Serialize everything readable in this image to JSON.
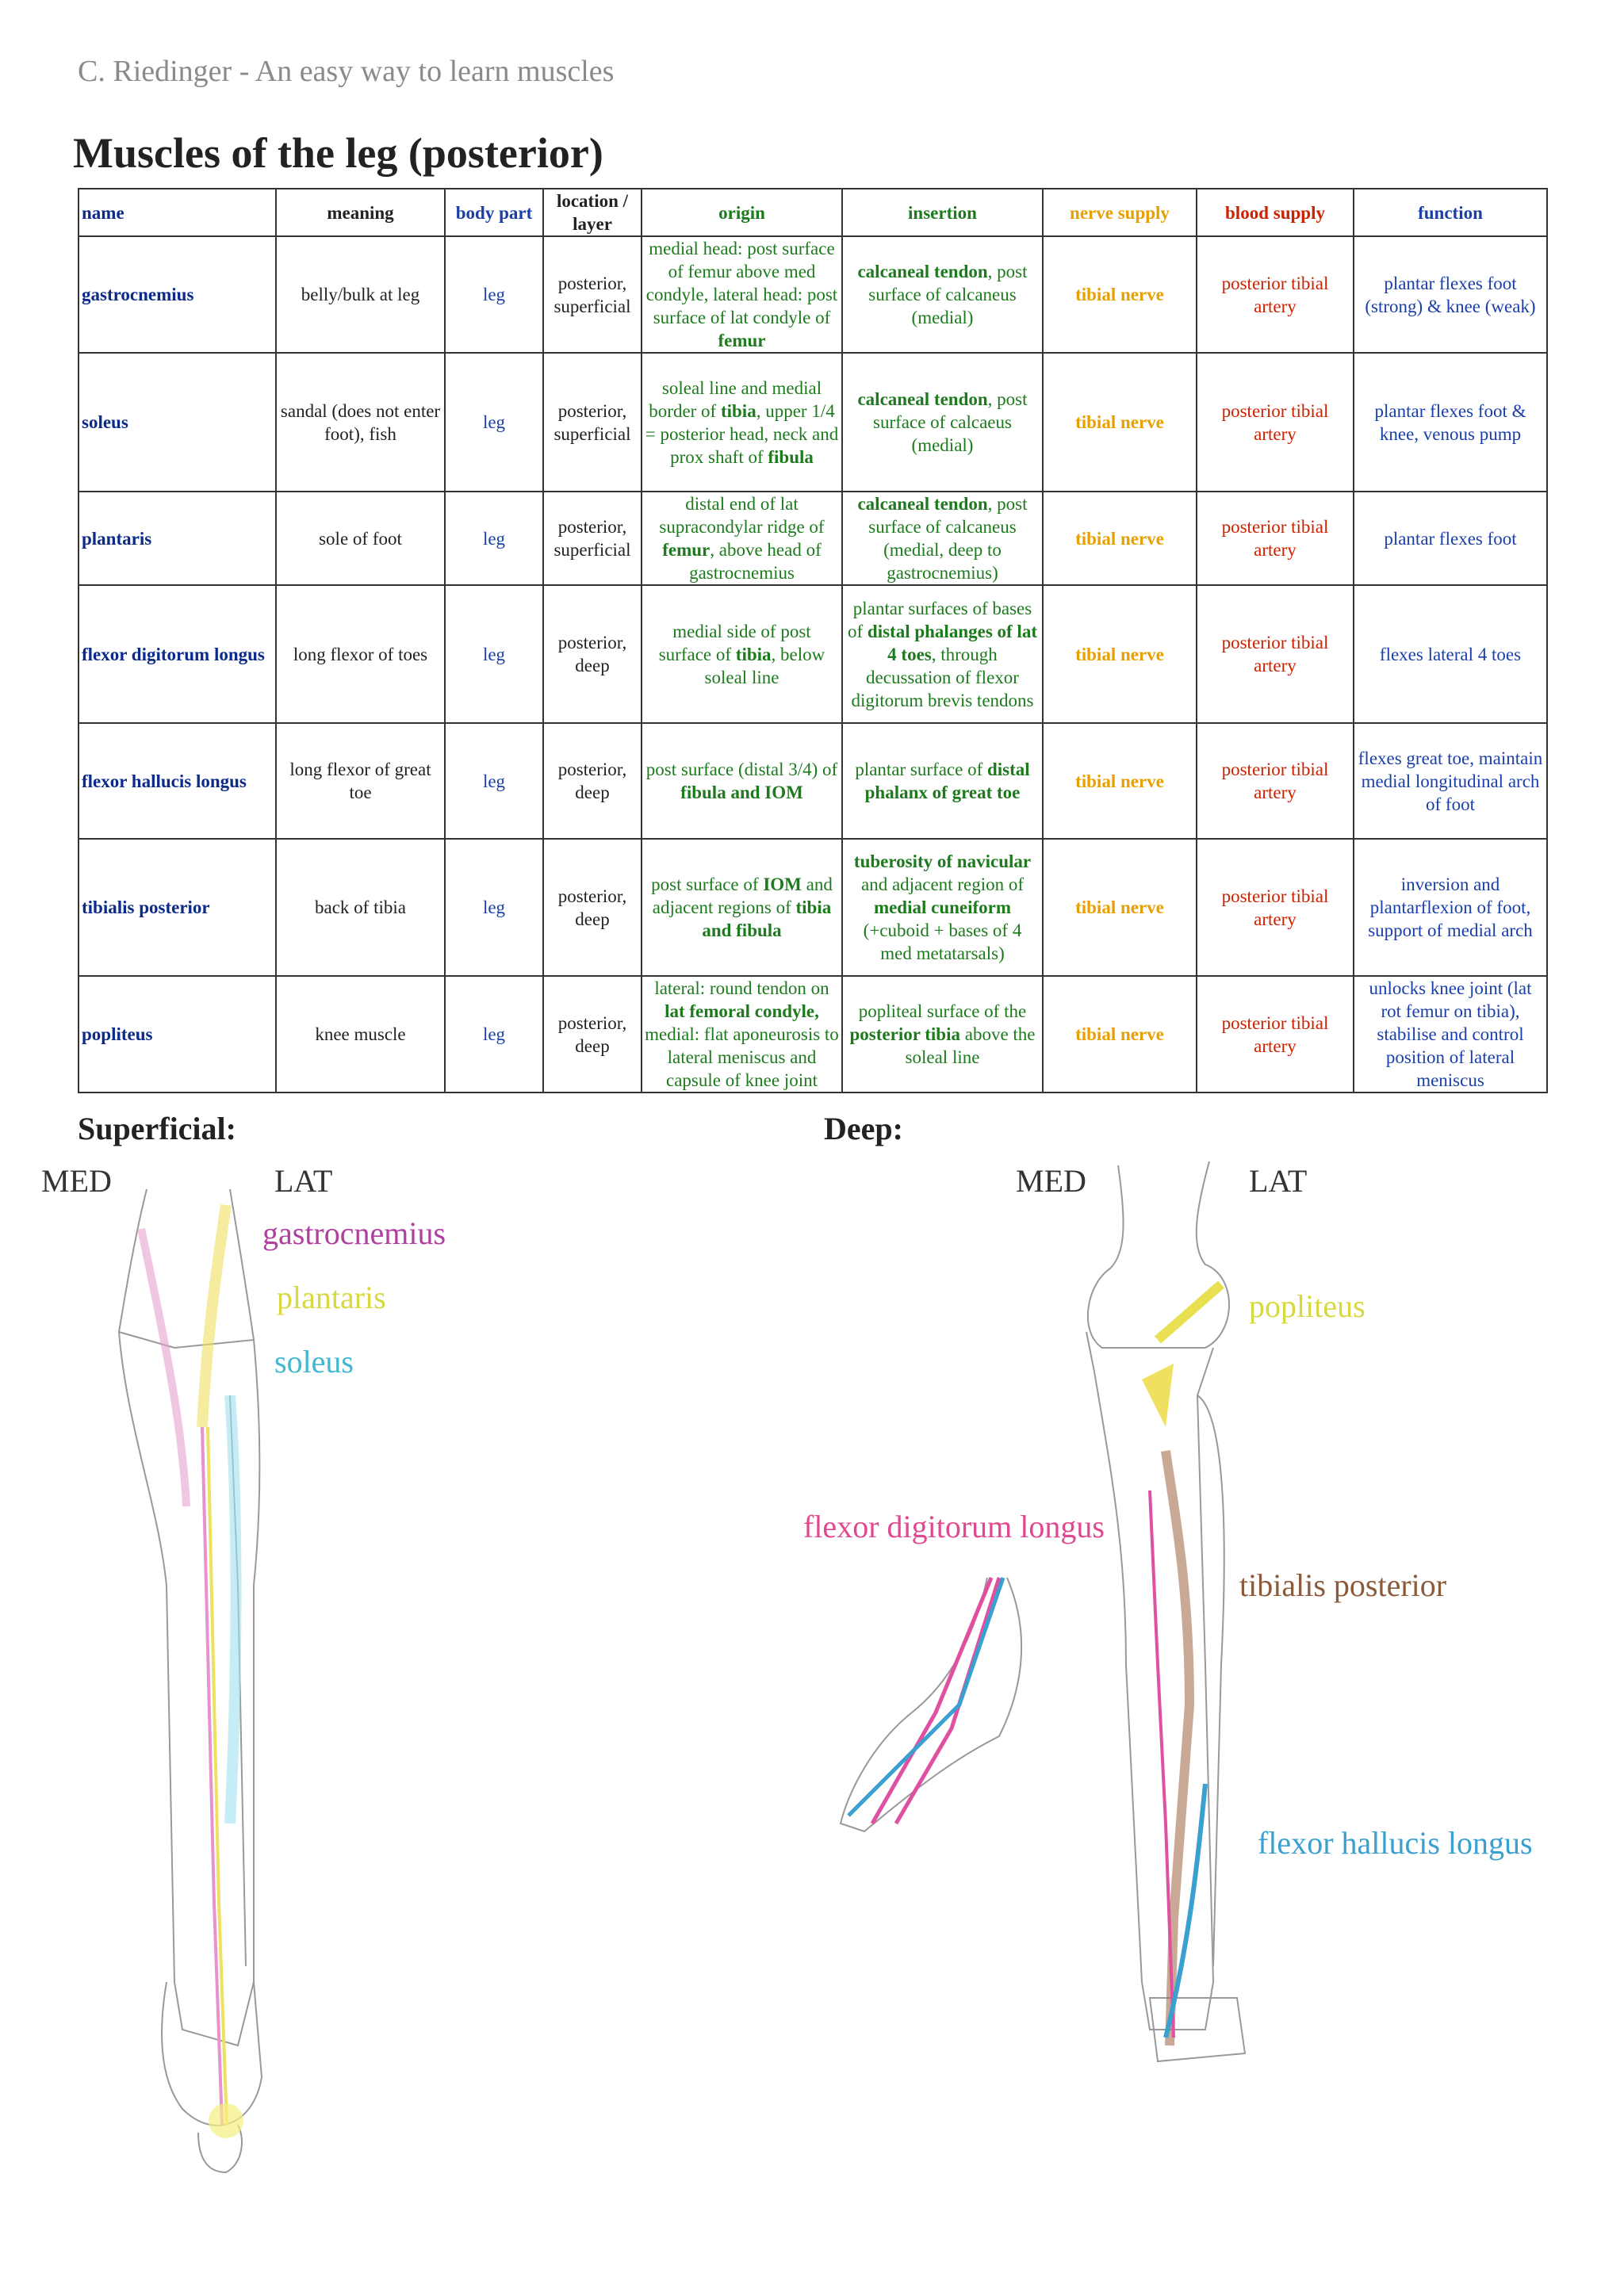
{
  "header": {
    "author": "C. Riedinger - An easy way to learn muscles",
    "title": "Muscles of the leg (posterior)"
  },
  "table": {
    "columns": [
      "name",
      "meaning",
      "body part",
      "location / layer",
      "origin",
      "insertion",
      "nerve supply",
      "blood supply",
      "function"
    ],
    "rows": [
      [
        "gastrocnemius",
        "belly/bulk at leg",
        "leg",
        "posterior, superficial",
        [
          "medial head: post surface of femur above med condyle, lateral head: post surface of lat condyle of ",
          {
            "b": "femur"
          }
        ],
        [
          {
            "b": "calcaneal tendon"
          },
          ", post surface of calcaneus (medial)"
        ],
        "tibial nerve",
        "posterior tibial artery",
        "plantar flexes foot (strong) & knee (weak)"
      ],
      [
        "soleus",
        "sandal (does not enter foot), fish",
        "leg",
        "posterior, superficial",
        [
          "soleal line and medial border of ",
          {
            "b": "tibia"
          },
          ", upper 1/4 = posterior head, neck and prox shaft of ",
          {
            "b": "fibula"
          }
        ],
        [
          {
            "b": "calcaneal tendon"
          },
          ", post surface of calcaeus (medial)"
        ],
        "tibial nerve",
        "posterior tibial artery",
        "plantar flexes foot & knee, venous pump"
      ],
      [
        "plantaris",
        "sole of foot",
        "leg",
        "posterior, superficial",
        [
          "distal end of lat supracondylar ridge of ",
          {
            "b": "femur"
          },
          ", above head of gastrocnemius"
        ],
        [
          {
            "b": "calcaneal tendon"
          },
          ", post surface of calcaneus (medial, deep to gastrocnemius)"
        ],
        "tibial nerve",
        "posterior tibial artery",
        "plantar flexes foot"
      ],
      [
        "flexor digitorum longus",
        "long flexor of toes",
        "leg",
        "posterior, deep",
        [
          "medial side of post surface of ",
          {
            "b": "tibia"
          },
          ", below soleal line"
        ],
        [
          "plantar surfaces of bases of ",
          {
            "b": "distal phalanges of lat 4 toes"
          },
          ", through decussation of flexor digitorum brevis tendons"
        ],
        "tibial nerve",
        "posterior tibial artery",
        "flexes lateral 4 toes"
      ],
      [
        "flexor hallucis longus",
        "long flexor of great toe",
        "leg",
        "posterior, deep",
        [
          "post surface (distal 3/4) of ",
          {
            "b": "fibula and IOM"
          }
        ],
        [
          "plantar surface of ",
          {
            "b": "distal phalanx of great toe"
          }
        ],
        "tibial nerve",
        "posterior tibial artery",
        "flexes great toe, maintain medial longitudinal arch of foot"
      ],
      [
        "tibialis posterior",
        "back of tibia",
        "leg",
        "posterior, deep",
        [
          "post surface of ",
          {
            "b": "IOM"
          },
          " and adjacent regions of ",
          {
            "b": "tibia and fibula"
          }
        ],
        [
          {
            "b": "tuberosity of navicular"
          },
          " and adjacent region of ",
          {
            "b": "medial cuneiform"
          },
          " (+cuboid + bases of 4 med metatarsals)"
        ],
        "tibial nerve",
        "posterior tibial artery",
        "inversion and plantarflexion of foot, support of medial arch"
      ],
      [
        "popliteus",
        "knee muscle",
        "leg",
        "posterior, deep",
        [
          "lateral: round tendon on ",
          {
            "b": "lat femoral condyle,"
          },
          " medial: flat aponeurosis to lateral meniscus and capsule of knee joint"
        ],
        [
          "popliteal surface of the ",
          {
            "b": "posterior tibia"
          },
          " above the soleal line"
        ],
        "tibial nerve",
        "posterior tibial artery",
        "unlocks knee joint (lat rot femur on tibia), stabilise and control position of lateral meniscus"
      ]
    ]
  },
  "superficial": {
    "heading": "Superficial:",
    "med": "MED",
    "lat": "LAT",
    "labels": [
      "gastrocnemius",
      "plantaris",
      "soleus"
    ]
  },
  "deep": {
    "heading": "Deep:",
    "med": "MED",
    "lat": "LAT",
    "labels": [
      "popliteus",
      "flexor digitorum longus",
      "tibialis posterior",
      "flexor hallucis longus"
    ]
  }
}
